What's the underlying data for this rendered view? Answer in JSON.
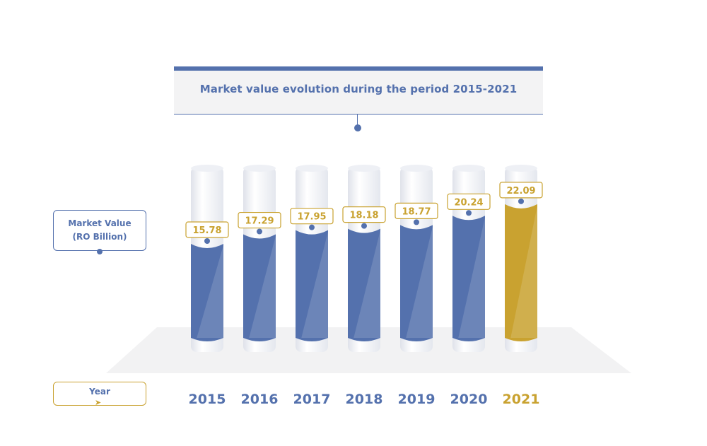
{
  "header": {
    "title": "Market value evolution during the period 2015-2021"
  },
  "axes": {
    "y_label_line1": "Market Value",
    "y_label_line2": "(RO Billion)",
    "x_label": "Year",
    "x_arrow_icon": "arrow-right-icon"
  },
  "chart_data": {
    "type": "bar",
    "title": "Market value evolution during the period 2015-2021",
    "xlabel": "Year",
    "ylabel": "Market Value (RO Billion)",
    "categories": [
      "2015",
      "2016",
      "2017",
      "2018",
      "2019",
      "2020",
      "2021"
    ],
    "values": [
      15.78,
      17.29,
      17.95,
      18.18,
      18.77,
      20.24,
      22.09
    ],
    "value_labels": [
      "15.78",
      "17.29",
      "17.95",
      "18.18",
      "18.77",
      "20.24",
      "22.09"
    ],
    "highlight_category": "2021",
    "grid": false,
    "legend": "none"
  },
  "colors": {
    "primary": "#5471ad",
    "highlight": "#c9a230",
    "tube": "#f4f5f8",
    "platform": "#f2f2f3"
  }
}
